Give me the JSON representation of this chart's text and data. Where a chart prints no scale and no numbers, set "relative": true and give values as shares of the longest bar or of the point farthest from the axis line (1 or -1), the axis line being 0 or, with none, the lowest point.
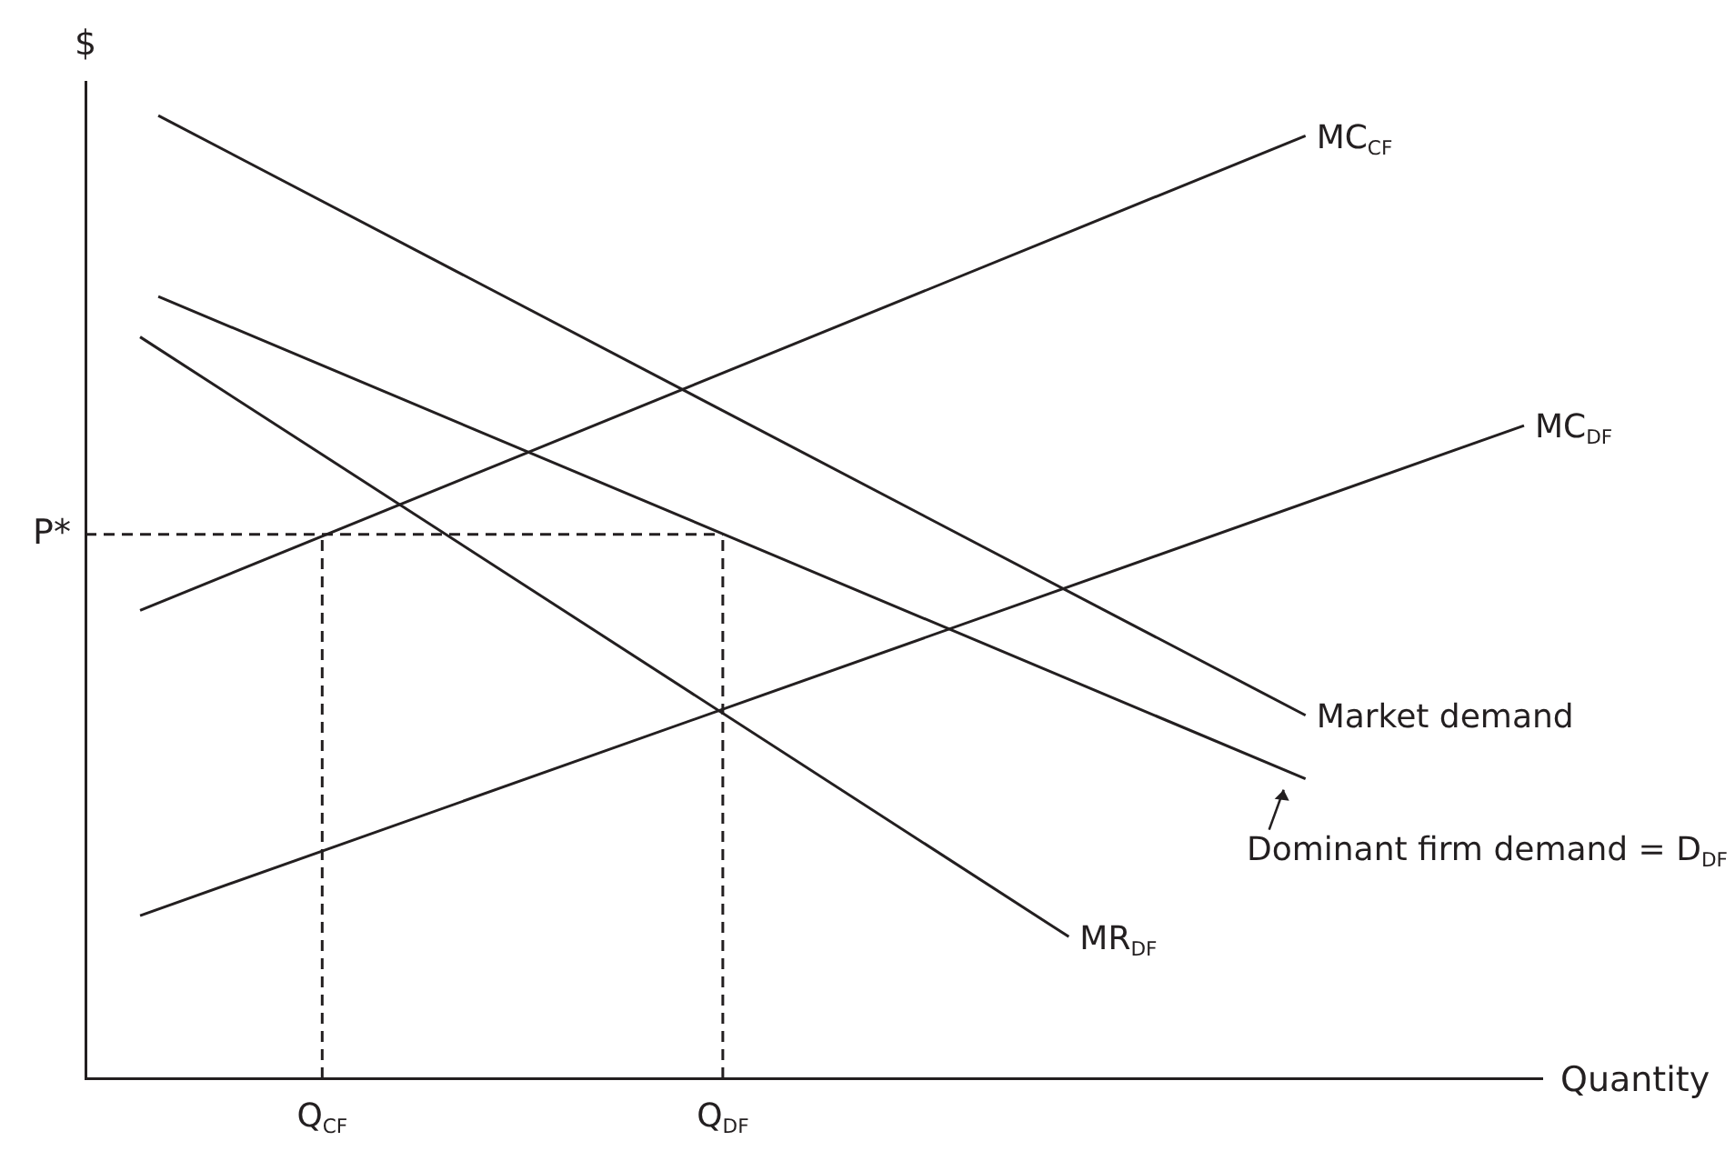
{
  "chart_data": {
    "type": "line",
    "relative": true,
    "ylabel": "$",
    "xlabel": "Quantity",
    "marker": "none",
    "categories": [
      null,
      null,
      null,
      null,
      null,
      null,
      null,
      null,
      null,
      null,
      null,
      null,
      null,
      "Q$_{CF}$",
      null,
      null,
      null,
      null,
      null,
      null,
      null,
      null,
      null,
      null,
      null,
      null,
      null,
      null,
      null,
      null,
      null,
      null,
      null,
      null,
      null,
      "Q$_{DF}$",
      null,
      null,
      null,
      null,
      null,
      null,
      null,
      null,
      null,
      null,
      null,
      null,
      null,
      null,
      null,
      null,
      null,
      null,
      null,
      null,
      null,
      null,
      null,
      null,
      null,
      null,
      null,
      null,
      null,
      null,
      null,
      null,
      null,
      null,
      null,
      null,
      null,
      null,
      null,
      null,
      null,
      null,
      null,
      null,
      null
    ],
    "series": [
      {
        "name": "MC$_{CF}$",
        "color": "#231f20",
        "values": [
          null,
          null,
          null,
          0.486,
          null,
          null,
          null,
          null,
          null,
          null,
          null,
          null,
          null,
          null,
          null,
          null,
          null,
          null,
          null,
          null,
          null,
          null,
          null,
          null,
          null,
          null,
          null,
          null,
          null,
          null,
          null,
          null,
          null,
          null,
          null,
          null,
          null,
          null,
          null,
          null,
          null,
          null,
          null,
          null,
          null,
          null,
          null,
          null,
          null,
          null,
          null,
          null,
          null,
          null,
          null,
          null,
          null,
          null,
          null,
          null,
          null,
          null,
          null,
          null,
          null,
          null,
          null,
          0.979,
          null,
          null,
          null,
          null,
          null,
          null,
          null,
          null,
          null,
          null,
          null,
          null,
          null
        ]
      },
      {
        "name": "MC$_{DF}$",
        "color": "#231f20",
        "values": [
          null,
          null,
          null,
          0.169,
          null,
          null,
          null,
          null,
          null,
          null,
          null,
          null,
          null,
          null,
          null,
          null,
          null,
          null,
          null,
          null,
          null,
          null,
          null,
          null,
          null,
          null,
          null,
          null,
          null,
          null,
          null,
          null,
          null,
          null,
          null,
          null,
          null,
          null,
          null,
          null,
          null,
          null,
          null,
          null,
          null,
          null,
          null,
          null,
          null,
          null,
          null,
          null,
          null,
          null,
          null,
          null,
          null,
          null,
          null,
          null,
          null,
          null,
          null,
          null,
          null,
          null,
          null,
          null,
          null,
          null,
          null,
          null,
          null,
          null,
          null,
          null,
          null,
          null,
          null,
          0.678,
          null
        ]
      },
      {
        "name": "Market demand",
        "color": "#231f20",
        "values": [
          null,
          null,
          null,
          null,
          1.0,
          null,
          null,
          null,
          null,
          null,
          null,
          null,
          null,
          null,
          null,
          null,
          null,
          null,
          null,
          null,
          null,
          null,
          null,
          null,
          null,
          null,
          null,
          null,
          null,
          null,
          null,
          null,
          null,
          null,
          null,
          null,
          null,
          null,
          null,
          null,
          null,
          null,
          null,
          null,
          null,
          null,
          null,
          null,
          null,
          null,
          null,
          null,
          null,
          null,
          null,
          null,
          null,
          null,
          null,
          null,
          null,
          null,
          null,
          null,
          null,
          null,
          null,
          0.377,
          null,
          null,
          null,
          null,
          null,
          null,
          null,
          null,
          null,
          null,
          null,
          null,
          null
        ]
      },
      {
        "name": "Dominant firm demand = D$_{DF}$",
        "color": "#231f20",
        "values": [
          null,
          null,
          null,
          null,
          0.812,
          null,
          null,
          null,
          null,
          null,
          null,
          null,
          null,
          null,
          null,
          null,
          null,
          null,
          null,
          null,
          null,
          null,
          null,
          null,
          null,
          null,
          null,
          null,
          null,
          null,
          null,
          null,
          null,
          null,
          null,
          null,
          null,
          null,
          null,
          null,
          null,
          null,
          null,
          null,
          null,
          null,
          null,
          null,
          null,
          null,
          null,
          null,
          null,
          null,
          null,
          null,
          null,
          null,
          null,
          null,
          null,
          null,
          null,
          null,
          null,
          null,
          null,
          0.311,
          null,
          null,
          null,
          null,
          null,
          null,
          null,
          null,
          null,
          null,
          null,
          null,
          null
        ]
      },
      {
        "name": "MR$_{DF}$",
        "color": "#231f20",
        "values": [
          null,
          null,
          null,
          0.77,
          null,
          null,
          null,
          null,
          null,
          null,
          null,
          null,
          null,
          null,
          null,
          null,
          null,
          null,
          null,
          null,
          null,
          null,
          null,
          null,
          null,
          null,
          null,
          null,
          null,
          null,
          null,
          null,
          null,
          null,
          null,
          null,
          null,
          null,
          null,
          null,
          null,
          null,
          null,
          null,
          null,
          null,
          null,
          null,
          null,
          null,
          null,
          null,
          null,
          null,
          0.147,
          null,
          null,
          null,
          null,
          null,
          null,
          null,
          null,
          null,
          null,
          null,
          null,
          null,
          null,
          null,
          null,
          null,
          null,
          null,
          null,
          null,
          null,
          null,
          null,
          null,
          null
        ]
      },
      {
        "color": "#231f20",
        "line_style": "dashed",
        "values": [
          0.565,
          null,
          null,
          null,
          null,
          null,
          null,
          null,
          null,
          null,
          null,
          null,
          null,
          null,
          null,
          null,
          null,
          null,
          null,
          null,
          null,
          null,
          null,
          null,
          null,
          null,
          null,
          null,
          null,
          null,
          null,
          null,
          null,
          null,
          null,
          0.565,
          null,
          null,
          null,
          null,
          null,
          null,
          null,
          null,
          null,
          null,
          null,
          null,
          null,
          null,
          null,
          null,
          null,
          null,
          null,
          null,
          null,
          null,
          null,
          null,
          null,
          null,
          null,
          null,
          null,
          null,
          null,
          null,
          null,
          null,
          null,
          null,
          null,
          null,
          null,
          null,
          null,
          null,
          null,
          null,
          null
        ]
      },
      {
        "color": "#231f20",
        "line_style": "dashed",
        "x": [
          "Q$_{CF}$",
          "Q$_{CF}$"
        ],
        "values": [
          0,
          0.565
        ]
      },
      {
        "color": "#231f20",
        "line_style": "dashed",
        "x": [
          "Q$_{DF}$",
          "Q$_{DF}$"
        ],
        "values": [
          0,
          0.565
        ]
      }
    ],
    "annotations": [
      "P*"
    ]
  }
}
